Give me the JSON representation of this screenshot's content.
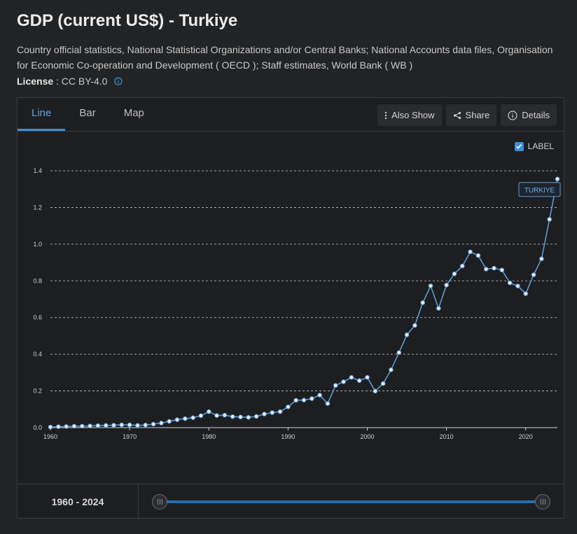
{
  "page": {
    "title": "GDP (current US$) - Turkiye",
    "source": "Country official statistics, National Statistical Organizations and/or Central Banks; National Accounts data files, Organisation for Economic Co-operation and Development ( OECD ); Staff estimates, World Bank ( WB )",
    "license_label": "License",
    "license_value": ": CC BY-4.0"
  },
  "tabs": [
    "Line",
    "Bar",
    "Map"
  ],
  "tools": {
    "also_show": "Also Show",
    "share": "Share",
    "details": "Details"
  },
  "label_toggle": {
    "text": "LABEL",
    "checked": true
  },
  "range": {
    "start": "1960",
    "separator": " - ",
    "end": "2024"
  },
  "colors": {
    "line": "#5b9bd5",
    "accent": "#3d8ed6"
  },
  "chart_data": {
    "type": "line",
    "title": "GDP (current US$) - Turkiye",
    "xlabel": "",
    "ylabel": "",
    "xlim": [
      1960,
      2024
    ],
    "ylim": [
      0,
      1.4
    ],
    "yticks": [
      "0.0",
      "0.2",
      "0.4",
      "0.6",
      "0.8",
      "1.0",
      "1.2",
      "1.4"
    ],
    "xticks": [
      "1960",
      "1970",
      "1980",
      "1990",
      "2000",
      "2010",
      "2020"
    ],
    "grid": true,
    "series": [
      {
        "name": "TURKIYE",
        "x": [
          1960,
          1961,
          1962,
          1963,
          1964,
          1965,
          1966,
          1967,
          1968,
          1969,
          1970,
          1971,
          1972,
          1973,
          1974,
          1975,
          1976,
          1977,
          1978,
          1979,
          1980,
          1981,
          1982,
          1983,
          1984,
          1985,
          1986,
          1987,
          1988,
          1989,
          1990,
          1991,
          1992,
          1993,
          1994,
          1995,
          1996,
          1997,
          1998,
          1999,
          2000,
          2001,
          2002,
          2003,
          2004,
          2005,
          2006,
          2007,
          2008,
          2009,
          2010,
          2011,
          2012,
          2013,
          2014,
          2015,
          2016,
          2017,
          2018,
          2019,
          2020,
          2021,
          2022,
          2023,
          2024
        ],
        "values": [
          0.003,
          0.005,
          0.006,
          0.008,
          0.008,
          0.009,
          0.011,
          0.012,
          0.013,
          0.015,
          0.015,
          0.012,
          0.014,
          0.019,
          0.025,
          0.034,
          0.043,
          0.049,
          0.054,
          0.065,
          0.087,
          0.066,
          0.068,
          0.06,
          0.058,
          0.056,
          0.061,
          0.074,
          0.082,
          0.087,
          0.113,
          0.149,
          0.15,
          0.158,
          0.177,
          0.131,
          0.23,
          0.25,
          0.274,
          0.256,
          0.274,
          0.199,
          0.24,
          0.315,
          0.409,
          0.506,
          0.557,
          0.681,
          0.773,
          0.65,
          0.777,
          0.838,
          0.881,
          0.958,
          0.938,
          0.864,
          0.869,
          0.859,
          0.789,
          0.772,
          0.73,
          0.833,
          0.92,
          1.135,
          1.355
        ]
      }
    ]
  }
}
